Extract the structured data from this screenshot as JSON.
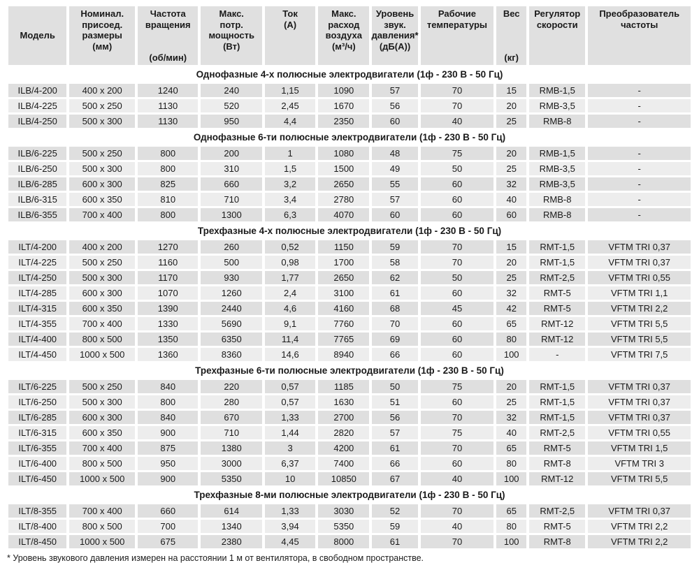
{
  "table": {
    "columns": [
      {
        "key": "model",
        "label": "Модель",
        "unit": ""
      },
      {
        "key": "size",
        "label": "Номинал.\nприсоед.\nразмеры\n(мм)",
        "unit": ""
      },
      {
        "key": "rpm",
        "label": "Частота\nвращения",
        "unit": "(об/мин)"
      },
      {
        "key": "power",
        "label": "Макс.\nпотр.\nмощность\n(Вт)",
        "unit": ""
      },
      {
        "key": "current",
        "label": "Ток\n(А)",
        "unit": ""
      },
      {
        "key": "airflow",
        "label": "Макс.\nрасход\nвоздуха\n(м³/ч)",
        "unit": ""
      },
      {
        "key": "sound",
        "label": "Уровень\nзвук.\nдавления*\n(дБ(А))",
        "unit": ""
      },
      {
        "key": "temp",
        "label": "Рабочие\nтемпературы",
        "unit": ""
      },
      {
        "key": "weight",
        "label": "Вес",
        "unit": "(кг)"
      },
      {
        "key": "regulator",
        "label": "Регулятор\nскорости",
        "unit": ""
      },
      {
        "key": "converter",
        "label": "Преобразователь\nчастоты",
        "unit": ""
      }
    ],
    "sections": [
      {
        "title": "Однофазные 4-х полюсные электродвигатели (1ф - 230 В - 50 Гц)",
        "rows": [
          [
            "ILB/4-200",
            "400 x 200",
            "1240",
            "240",
            "1,15",
            "1090",
            "57",
            "70",
            "15",
            "RMB-1,5",
            "-"
          ],
          [
            "ILB/4-225",
            "500 x 250",
            "1130",
            "520",
            "2,45",
            "1670",
            "56",
            "70",
            "20",
            "RMB-3,5",
            "-"
          ],
          [
            "ILB/4-250",
            "500 x 300",
            "1130",
            "950",
            "4,4",
            "2350",
            "60",
            "40",
            "25",
            "RMB-8",
            "-"
          ]
        ]
      },
      {
        "title": "Однофазные 6-ти полюсные электродвигатели (1ф - 230 В - 50 Гц)",
        "rows": [
          [
            "ILB/6-225",
            "500 x 250",
            "800",
            "200",
            "1",
            "1080",
            "48",
            "75",
            "20",
            "RMB-1,5",
            "-"
          ],
          [
            "ILB/6-250",
            "500 x 300",
            "800",
            "310",
            "1,5",
            "1500",
            "49",
            "50",
            "25",
            "RMB-3,5",
            "-"
          ],
          [
            "ILB/6-285",
            "600 x 300",
            "825",
            "660",
            "3,2",
            "2650",
            "55",
            "60",
            "32",
            "RMB-3,5",
            "-"
          ],
          [
            "ILB/6-315",
            "600 x 350",
            "810",
            "710",
            "3,4",
            "2780",
            "57",
            "60",
            "40",
            "RMB-8",
            "-"
          ],
          [
            "ILB/6-355",
            "700 x 400",
            "800",
            "1300",
            "6,3",
            "4070",
            "60",
            "60",
            "60",
            "RMB-8",
            "-"
          ]
        ]
      },
      {
        "title": "Трехфазные 4-х полюсные электродвигатели (1ф - 230 В - 50 Гц)",
        "rows": [
          [
            "ILT/4-200",
            "400 x 200",
            "1270",
            "260",
            "0,52",
            "1150",
            "59",
            "70",
            "15",
            "RMT-1,5",
            "VFTM TRI 0,37"
          ],
          [
            "ILT/4-225",
            "500 x 250",
            "1160",
            "500",
            "0,98",
            "1700",
            "58",
            "70",
            "20",
            "RMT-1,5",
            "VFTM TRI 0,37"
          ],
          [
            "ILT/4-250",
            "500 x 300",
            "1170",
            "930",
            "1,77",
            "2650",
            "62",
            "50",
            "25",
            "RMT-2,5",
            "VFTM TRI 0,55"
          ],
          [
            "ILT/4-285",
            "600 x 300",
            "1070",
            "1260",
            "2,4",
            "3100",
            "61",
            "60",
            "32",
            "RMT-5",
            "VFTM TRI 1,1"
          ],
          [
            "ILT/4-315",
            "600 x 350",
            "1390",
            "2440",
            "4,6",
            "4160",
            "68",
            "45",
            "42",
            "RMT-5",
            "VFTM TRI 2,2"
          ],
          [
            "ILT/4-355",
            "700 x 400",
            "1330",
            "5690",
            "9,1",
            "7760",
            "70",
            "60",
            "65",
            "RMT-12",
            "VFTM TRI 5,5"
          ],
          [
            "ILT/4-400",
            "800 x 500",
            "1350",
            "6350",
            "11,4",
            "7765",
            "69",
            "60",
            "80",
            "RMT-12",
            "VFTM TRI 5,5"
          ],
          [
            "ILT/4-450",
            "1000 x 500",
            "1360",
            "8360",
            "14,6",
            "8940",
            "66",
            "60",
            "100",
            "-",
            "VFTM TRI 7,5"
          ]
        ]
      },
      {
        "title": "Трехфазные 6-ти полюсные электродвигатели (1ф - 230 В - 50 Гц)",
        "rows": [
          [
            "ILT/6-225",
            "500 x 250",
            "840",
            "220",
            "0,57",
            "1185",
            "50",
            "75",
            "20",
            "RMT-1,5",
            "VFTM TRI 0,37"
          ],
          [
            "ILT/6-250",
            "500 x 300",
            "800",
            "280",
            "0,57",
            "1630",
            "51",
            "60",
            "25",
            "RMT-1,5",
            "VFTM TRI 0,37"
          ],
          [
            "ILT/6-285",
            "600 x 300",
            "840",
            "670",
            "1,33",
            "2700",
            "56",
            "70",
            "32",
            "RMT-1,5",
            "VFTM TRI 0,37"
          ],
          [
            "ILT/6-315",
            "600 x 350",
            "900",
            "710",
            "1,44",
            "2820",
            "57",
            "75",
            "40",
            "RMT-2,5",
            "VFTM TRI 0,55"
          ],
          [
            "ILT/6-355",
            "700 x 400",
            "875",
            "1380",
            "3",
            "4200",
            "61",
            "70",
            "65",
            "RMT-5",
            "VFTM TRI 1,5"
          ],
          [
            "ILT/6-400",
            "800 x 500",
            "950",
            "3000",
            "6,37",
            "7400",
            "66",
            "60",
            "80",
            "RMT-8",
            "VFTM TRI 3"
          ],
          [
            "ILT/6-450",
            "1000 x 500",
            "900",
            "5350",
            "10",
            "10850",
            "67",
            "40",
            "100",
            "RMT-12",
            "VFTM TRI 5,5"
          ]
        ]
      },
      {
        "title": "Трехфазные 8-ми полюсные электродвигатели (1ф - 230 В - 50 Гц)",
        "rows": [
          [
            "ILT/8-355",
            "700 x 400",
            "660",
            "614",
            "1,33",
            "3030",
            "52",
            "70",
            "65",
            "RMT-2,5",
            "VFTM TRI 0,37"
          ],
          [
            "ILT/8-400",
            "800 x 500",
            "700",
            "1340",
            "3,94",
            "5350",
            "59",
            "40",
            "80",
            "RMT-5",
            "VFTM TRI 2,2"
          ],
          [
            "ILT/8-450",
            "1000 x 500",
            "675",
            "2380",
            "4,45",
            "8000",
            "61",
            "70",
            "100",
            "RMT-8",
            "VFTM TRI 2,2"
          ]
        ]
      }
    ]
  },
  "footnote": "* Уровень звукового давления измерен на расстоянии 1 м от вентилятора, в свободном пространстве.",
  "colors": {
    "row_dark": "#dfdfdf",
    "row_light": "#ededed",
    "header_bg": "#e0e0e0",
    "text": "#1a1a1a",
    "background": "#ffffff"
  }
}
